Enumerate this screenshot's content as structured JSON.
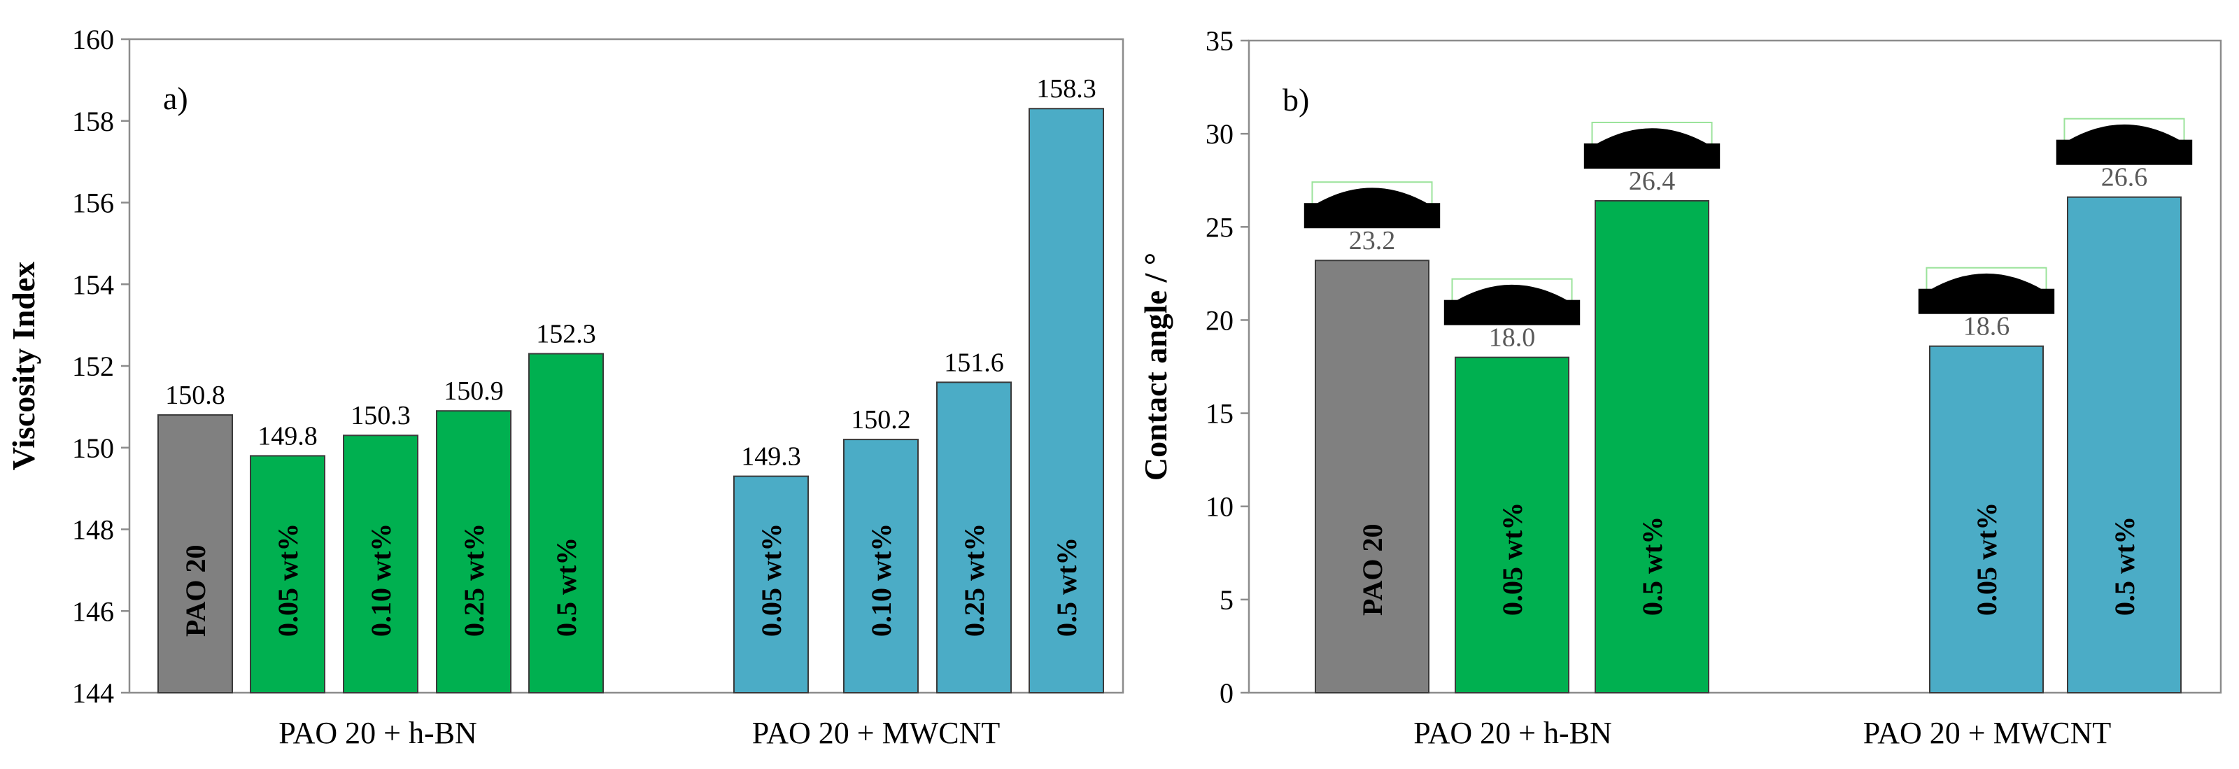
{
  "chart_data": [
    {
      "type": "bar",
      "panel_label": "a)",
      "ylabel": "Viscosity Index",
      "ylim": [
        144,
        160
      ],
      "yticks": [
        144,
        146,
        148,
        150,
        152,
        154,
        156,
        158,
        160
      ],
      "grid": false,
      "groups": [
        {
          "name": "PAO 20 + h-BN",
          "bars": [
            {
              "label": "PAO 20",
              "value": 150.8,
              "value_label": "150.8",
              "color": "#808080"
            },
            {
              "label": "0.05 wt%",
              "value": 149.8,
              "value_label": "149.8",
              "color": "#00b050"
            },
            {
              "label": "0.10 wt%",
              "value": 150.3,
              "value_label": "150.3",
              "color": "#00b050"
            },
            {
              "label": "0.25 wt%",
              "value": 150.9,
              "value_label": "150.9",
              "color": "#00b050"
            },
            {
              "label": "0.5 wt%",
              "value": 152.3,
              "value_label": "152.3",
              "color": "#00b050"
            }
          ]
        },
        {
          "name": "PAO 20 + MWCNT",
          "bars": [
            {
              "label": "0.05 wt%",
              "value": 149.3,
              "value_label": "149.3",
              "color": "#4bacc6"
            },
            {
              "label": "0.10 wt%",
              "value": 150.2,
              "value_label": "150.2",
              "color": "#4bacc6"
            },
            {
              "label": "0.25 wt%",
              "value": 151.6,
              "value_label": "151.6",
              "color": "#4bacc6"
            },
            {
              "label": "0.5 wt%",
              "value": 158.3,
              "value_label": "158.3",
              "color": "#4bacc6"
            }
          ]
        }
      ]
    },
    {
      "type": "bar",
      "panel_label": "b)",
      "ylabel": "Contact angle / °",
      "ylim": [
        0,
        35
      ],
      "yticks": [
        0,
        5,
        10,
        15,
        20,
        25,
        30,
        35
      ],
      "grid": false,
      "droplet_images": true,
      "groups": [
        {
          "name": "PAO 20 + h-BN",
          "bars": [
            {
              "label": "PAO 20",
              "value": 23.2,
              "value_label": "23.2",
              "color": "#808080"
            },
            {
              "label": "0.05 wt%",
              "value": 18.0,
              "value_label": "18.0",
              "color": "#00b050"
            },
            {
              "label": "0.5 wt%",
              "value": 26.4,
              "value_label": "26.4",
              "color": "#00b050"
            }
          ]
        },
        {
          "name": "PAO 20 + MWCNT",
          "bars": [
            {
              "label": "0.05 wt%",
              "value": 18.6,
              "value_label": "18.6",
              "color": "#4bacc6"
            },
            {
              "label": "0.5 wt%",
              "value": 26.6,
              "value_label": "26.6",
              "color": "#4bacc6"
            }
          ]
        }
      ]
    }
  ]
}
